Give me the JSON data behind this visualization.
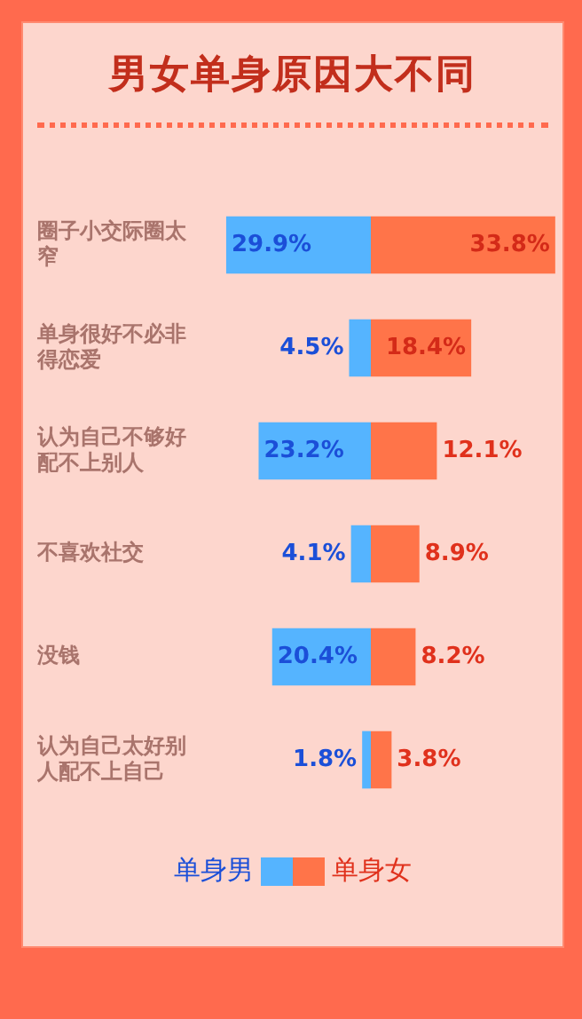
{
  "chart_data": [
    {
      "type": "bar",
      "orientation": "horizontal",
      "title": "男女单身原因大不同",
      "categories": [
        "圈子小交际圈太窄",
        "单身很好不必非得恋爱",
        "认为自己不够好配不上别人",
        "不喜欢社交",
        "没钱",
        "认为自己太好别人配不上自己"
      ],
      "series": [
        {
          "name": "单身男",
          "color": "#55b4ff",
          "values": [
            29.9,
            4.5,
            23.2,
            4.1,
            20.4,
            1.8
          ],
          "value_labels": [
            "29.9%",
            "4.5%",
            "23.2%",
            "4.1%",
            "20.4%",
            "1.8%"
          ]
        }
      ],
      "tick_labels": "y",
      "legend": "bottom"
    },
    {
      "type": "bar",
      "orientation": "horizontal",
      "categories": [
        "圈子小交际圈太窄",
        "单身很好不必非得恋爱",
        "认为自己不够好配不上别人",
        "不喜欢社交",
        "没钱",
        "认为自己太好别人配不上自己"
      ],
      "series": [
        {
          "name": "单身女",
          "color": "#ff7449",
          "values": [
            33.8,
            18.4,
            12.1,
            8.9,
            8.2,
            3.8
          ],
          "value_labels": [
            "33.8%",
            "18.4%",
            "12.1%",
            "8.9%",
            "8.2%",
            "3.8%"
          ]
        }
      ],
      "tick_labels": false,
      "legend": "bottom"
    }
  ]
}
